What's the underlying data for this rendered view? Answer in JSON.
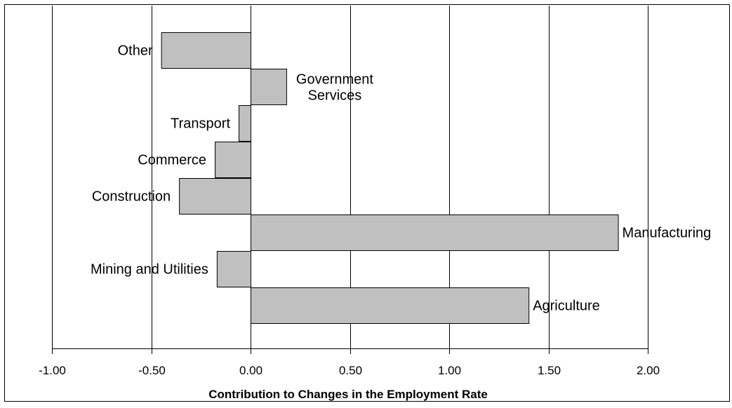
{
  "chart_data": {
    "type": "bar",
    "orientation": "horizontal",
    "xlabel": "Contribution to Changes in the Employment Rate",
    "xlim": [
      -1.0,
      2.0
    ],
    "x_ticks": [
      -1.0,
      -0.5,
      0.0,
      0.5,
      1.0,
      1.5,
      2.0
    ],
    "x_tick_labels": [
      "-1.00",
      "-0.50",
      "0.00",
      "0.50",
      "1.00",
      "1.50",
      "2.00"
    ],
    "grid": "vertical",
    "bar_color": "#c0c0c0",
    "categories": [
      "Other",
      "Government Services",
      "Transport",
      "Commerce",
      "Construction",
      "Manufacturing",
      "Mining and Utilities",
      "Agriculture"
    ],
    "category_label_lines": [
      [
        "Other"
      ],
      [
        "Government",
        "Services"
      ],
      [
        "Transport"
      ],
      [
        "Commerce"
      ],
      [
        "Construction"
      ],
      [
        "Manufacturing"
      ],
      [
        "Mining and Utilities"
      ],
      [
        "Agriculture"
      ]
    ],
    "values": [
      -0.45,
      0.18,
      -0.06,
      -0.18,
      -0.36,
      1.85,
      -0.17,
      1.4
    ]
  }
}
